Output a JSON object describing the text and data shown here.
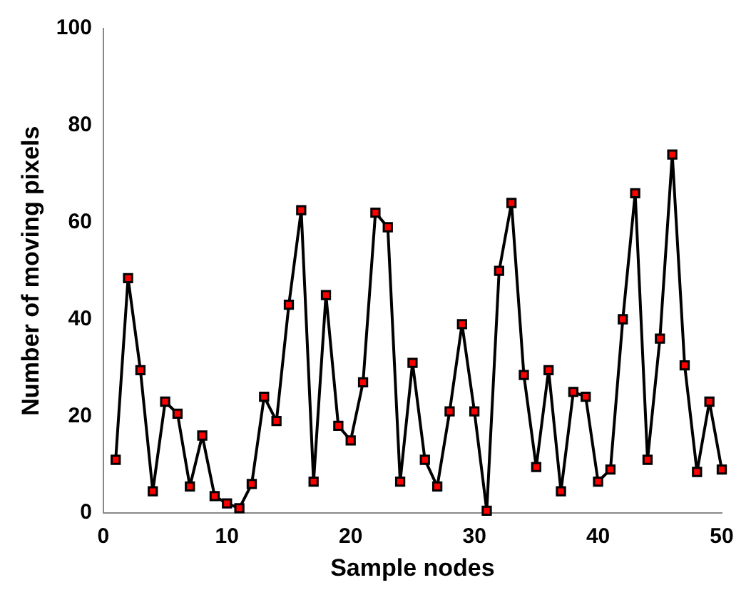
{
  "chart_data": {
    "type": "line",
    "xlabel": "Sample nodes",
    "ylabel": "Number of moving pixels",
    "x": [
      1,
      2,
      3,
      4,
      5,
      6,
      7,
      8,
      9,
      10,
      11,
      12,
      13,
      14,
      15,
      16,
      17,
      18,
      19,
      20,
      21,
      22,
      23,
      24,
      25,
      26,
      27,
      28,
      29,
      30,
      31,
      32,
      33,
      34,
      35,
      36,
      37,
      38,
      39,
      40,
      41,
      42,
      43,
      44,
      45,
      46,
      47,
      48,
      49,
      50
    ],
    "series": [
      {
        "color": "#000000",
        "values": [
          11,
          48.5,
          29.5,
          4.5,
          23,
          20.5,
          5.5,
          16,
          3.5,
          2,
          1,
          6,
          24,
          19,
          43,
          62.5,
          6.5,
          45,
          18,
          15,
          27,
          62,
          59,
          6.5,
          31,
          11,
          5.5,
          21,
          39,
          21,
          0.5,
          50,
          64,
          28.5,
          9.5,
          29.5,
          4.5,
          25,
          24,
          6.5,
          9,
          40,
          66,
          11,
          36,
          74,
          30.5,
          8.5,
          23,
          9
        ]
      }
    ],
    "marker": "square",
    "line_style": "solid",
    "grid": false,
    "legend": false,
    "xlim": [
      0,
      50
    ],
    "xticks": [
      0,
      10,
      20,
      30,
      40,
      50
    ],
    "ylim": [
      0,
      100
    ],
    "yticks": [
      0,
      20,
      40,
      60,
      80,
      100
    ]
  }
}
